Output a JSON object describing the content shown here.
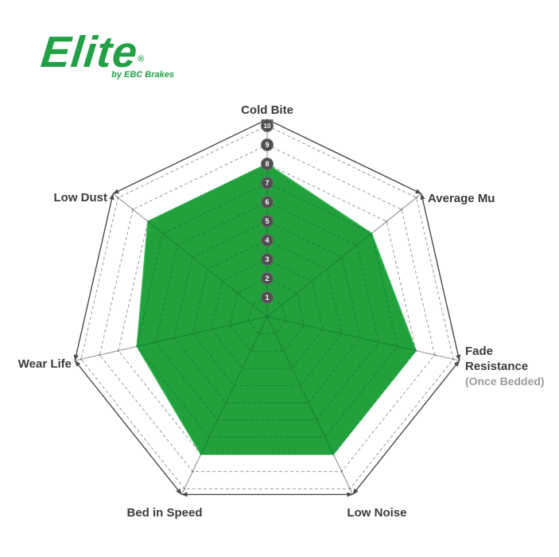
{
  "logo": {
    "brand": "Elite",
    "registered": "®",
    "tagline": "by EBC Brakes",
    "color": "#21a046"
  },
  "chart_data": {
    "type": "radar",
    "axes": [
      {
        "label": "Cold Bite",
        "value": 8
      },
      {
        "label": "Average Mu",
        "value": 7
      },
      {
        "label": "Fade Resistance",
        "sublabel": "(Once Bedded)",
        "value": 8
      },
      {
        "label": "Low Noise",
        "value": 8
      },
      {
        "label": "Bed in Speed",
        "value": 8
      },
      {
        "label": "Wear Life",
        "value": 7
      },
      {
        "label": "Low Dust",
        "value": 8
      }
    ],
    "scale": {
      "min": 0,
      "max": 10,
      "ticks": [
        1,
        2,
        3,
        4,
        5,
        6,
        7,
        8,
        9,
        10
      ]
    },
    "grid": {
      "rings": 10,
      "ring_style": "dashed",
      "outer_edge_style": "solid-double-arrow"
    },
    "legend": "none",
    "colors": {
      "fill": "#22a03c",
      "fill_edge": "#3ab457",
      "grid_inner": "#128030",
      "grid_outer": "#9a9a9a",
      "outline": "#4a4a4a",
      "tick_circle": "#4f4f4f",
      "tick_circle_rim": "#6f6f6f",
      "tick_text": "#ffffff",
      "label": "#3b3b3b",
      "sublabel": "#9b9b9b"
    }
  }
}
